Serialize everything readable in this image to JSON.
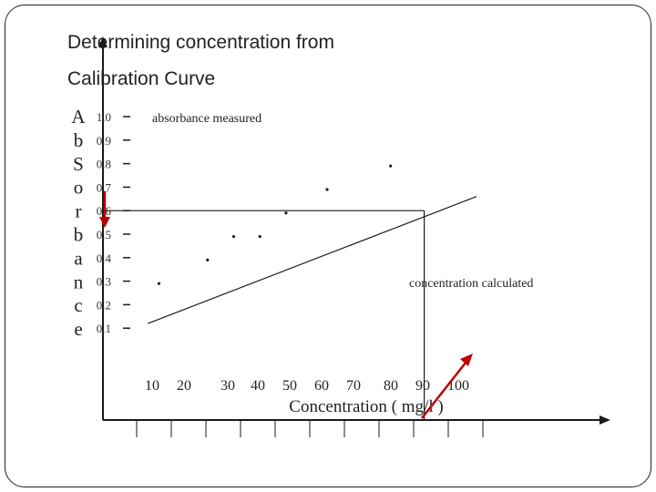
{
  "slide": {
    "title_line1": "Determining concentration from",
    "title_line2": "Calibration Curve"
  },
  "chart_data": {
    "type": "scatter",
    "title": "Determining concentration from Calibration Curve",
    "xlabel": "Concentration ( mg/l )",
    "ylabel": "AbSorbance",
    "x_ticks": [
      10,
      20,
      30,
      40,
      50,
      60,
      70,
      80,
      90,
      100
    ],
    "y_ticks": [
      1.0,
      0.9,
      0.8,
      0.7,
      0.6,
      0.5,
      0.4,
      0.3,
      0.2,
      0.1
    ],
    "y_tick_labels": [
      "1.0",
      "0.9",
      "0.8",
      "0.7",
      "0.6",
      "0.5",
      "0.4",
      "0.3",
      "0.2",
      "0.1"
    ],
    "xlim": [
      0,
      110
    ],
    "ylim": [
      0,
      1.05
    ],
    "points": [
      {
        "x": 15,
        "y": 0.29
      },
      {
        "x": 28,
        "y": 0.39
      },
      {
        "x": 35,
        "y": 0.49
      },
      {
        "x": 42,
        "y": 0.49
      },
      {
        "x": 49,
        "y": 0.59
      },
      {
        "x": 60,
        "y": 0.69
      },
      {
        "x": 77,
        "y": 0.79
      }
    ],
    "fit_line": {
      "x0": 12,
      "y0": 0.12,
      "x1": 100,
      "y1": 0.66
    },
    "measured_absorbance": 0.6,
    "calculated_concentration": 86,
    "annotations": {
      "measured": "absorbance measured",
      "calculated": "concentration calculated"
    },
    "colors": {
      "axis": "#1a1a1a",
      "arrow": "#c00000"
    }
  }
}
